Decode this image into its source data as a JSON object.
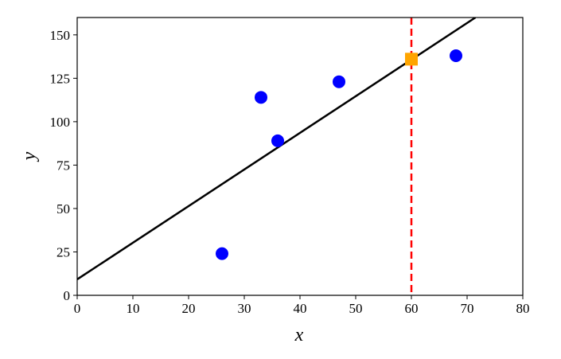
{
  "chart_data": {
    "type": "scatter",
    "xlabel": "x",
    "ylabel": "y",
    "xlim": [
      0,
      80
    ],
    "ylim": [
      0,
      160
    ],
    "xticks": [
      0,
      10,
      20,
      30,
      40,
      50,
      60,
      70,
      80
    ],
    "yticks": [
      0,
      25,
      50,
      75,
      100,
      125,
      150
    ],
    "points": {
      "x": [
        26,
        33,
        36,
        47,
        68
      ],
      "y": [
        24,
        114,
        89,
        123,
        138
      ],
      "color": "#0000ff"
    },
    "fit_line": {
      "x": [
        0,
        71.5
      ],
      "y": [
        9.2,
        160
      ],
      "color": "#000000"
    },
    "highlight": {
      "x": 60,
      "y": 136,
      "color": "#ffa500"
    },
    "vline": {
      "x": 60,
      "color": "#ff0000",
      "dashed": true
    }
  }
}
